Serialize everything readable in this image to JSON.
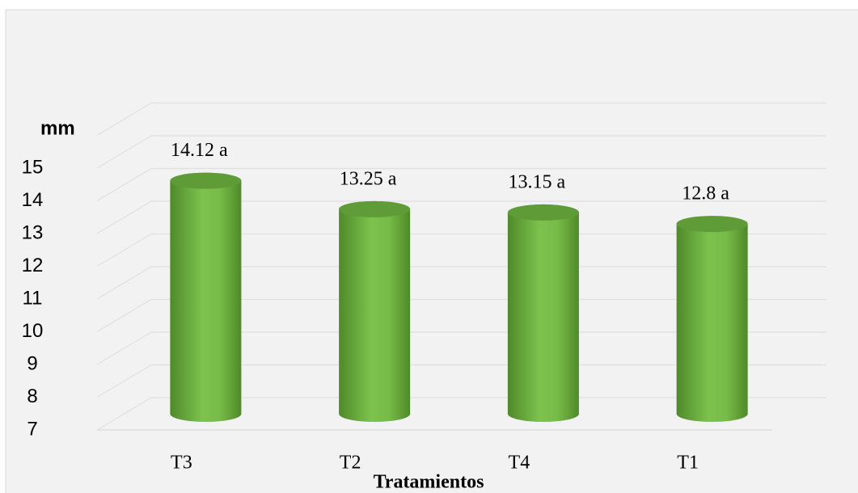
{
  "chart_data": {
    "type": "bar3d",
    "y_axis_label": "mm",
    "x_axis_label": "Tratamientos",
    "categories": [
      "T3",
      "T2",
      "T4",
      "T1"
    ],
    "values": [
      14.12,
      13.25,
      13.15,
      12.8
    ],
    "value_labels": [
      "14.12 a",
      "13.25 a",
      "13.15 a",
      "12.8 a"
    ],
    "color": "#70ad47",
    "ylim": [
      7,
      16
    ],
    "yticks": [
      7,
      8,
      9,
      10,
      11,
      12,
      13,
      14,
      15
    ],
    "grid": true
  }
}
